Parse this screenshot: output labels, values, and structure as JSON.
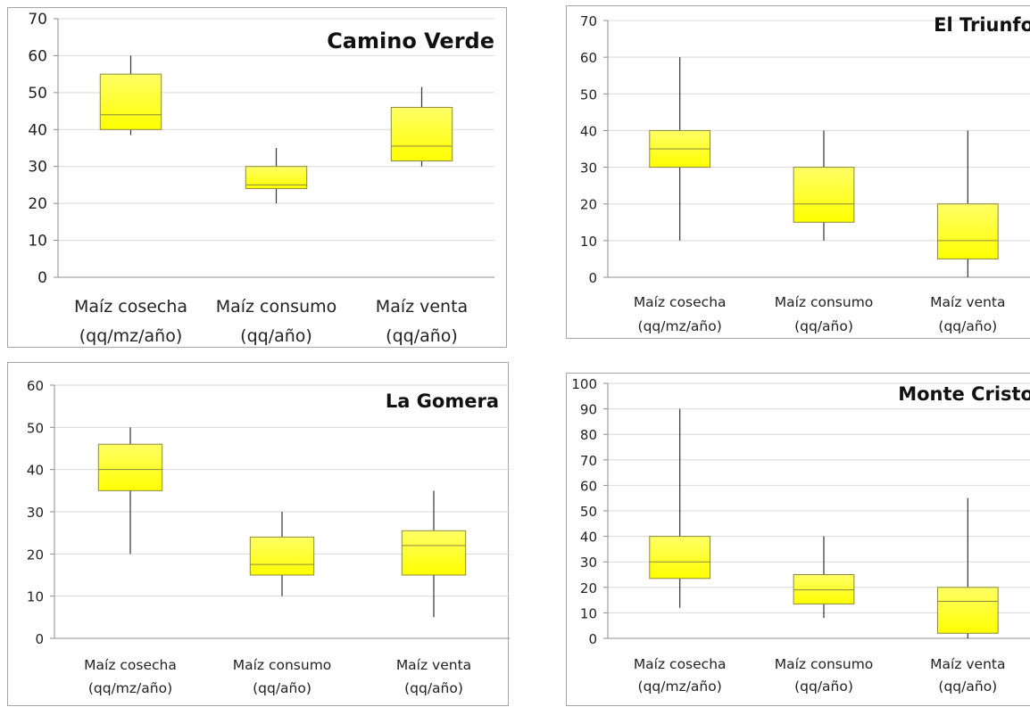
{
  "colors": {
    "box_top": "#ffff66",
    "box_bottom": "#ffff00",
    "box_stroke": "#8a8a40",
    "whisker": "#333333",
    "grid": "#d9d9d9",
    "axis": "#8c8c8c"
  },
  "chart_data": [
    {
      "type": "box",
      "title": "Camino Verde",
      "xlabel": "",
      "ylabel": "",
      "ylim": [
        0,
        70
      ],
      "yticks": [
        0,
        10,
        20,
        30,
        40,
        50,
        60,
        70
      ],
      "grid": true,
      "categories": [
        {
          "line1": "Maíz cosecha",
          "line2": "(qq/mz/año)"
        },
        {
          "line1": "Maíz consumo",
          "line2": "(qq/año)"
        },
        {
          "line1": "Maíz venta",
          "line2": "(qq/año)"
        }
      ],
      "boxes": [
        {
          "min": 38.5,
          "q1": 40,
          "median": 44,
          "q3": 55,
          "max": 60
        },
        {
          "min": 20,
          "q1": 24,
          "median": 25,
          "q3": 30,
          "max": 35
        },
        {
          "min": 30,
          "q1": 31.5,
          "median": 35.5,
          "q3": 46,
          "max": 51.5
        }
      ]
    },
    {
      "type": "box",
      "title": "El Triunfo",
      "xlabel": "",
      "ylabel": "",
      "ylim": [
        0,
        70
      ],
      "yticks": [
        0,
        10,
        20,
        30,
        40,
        50,
        60,
        70
      ],
      "grid": true,
      "categories": [
        {
          "line1": "Maíz cosecha",
          "line2": "(qq/mz/año)"
        },
        {
          "line1": "Maíz consumo",
          "line2": "(qq/año)"
        },
        {
          "line1": "Maíz venta",
          "line2": "(qq/año)"
        }
      ],
      "boxes": [
        {
          "min": 10,
          "q1": 30,
          "median": 35,
          "q3": 40,
          "max": 60
        },
        {
          "min": 10,
          "q1": 15,
          "median": 20,
          "q3": 30,
          "max": 40
        },
        {
          "min": 0,
          "q1": 5,
          "median": 10,
          "q3": 20,
          "max": 40
        }
      ]
    },
    {
      "type": "box",
      "title": "La Gomera",
      "xlabel": "",
      "ylabel": "",
      "ylim": [
        0,
        60
      ],
      "yticks": [
        0,
        10,
        20,
        30,
        40,
        50,
        60
      ],
      "grid": true,
      "categories": [
        {
          "line1": "Maíz cosecha",
          "line2": "(qq/mz/año)"
        },
        {
          "line1": "Maíz consumo",
          "line2": "(qq/año)"
        },
        {
          "line1": "Maíz venta",
          "line2": "(qq/año)"
        }
      ],
      "boxes": [
        {
          "min": 20,
          "q1": 35,
          "median": 40,
          "q3": 46,
          "max": 50
        },
        {
          "min": 10,
          "q1": 15,
          "median": 17.5,
          "q3": 24,
          "max": 30
        },
        {
          "min": 5,
          "q1": 15,
          "median": 22,
          "q3": 25.5,
          "max": 35
        }
      ]
    },
    {
      "type": "box",
      "title": "Monte Cristo",
      "xlabel": "",
      "ylabel": "",
      "ylim": [
        0,
        100
      ],
      "yticks": [
        0,
        10,
        20,
        30,
        40,
        50,
        60,
        70,
        80,
        90,
        100
      ],
      "grid": true,
      "categories": [
        {
          "line1": "Maíz cosecha",
          "line2": "(qq/mz/año)"
        },
        {
          "line1": "Maíz consumo",
          "line2": "(qq/año)"
        },
        {
          "line1": "Maíz venta",
          "line2": "(qq/año)"
        }
      ],
      "boxes": [
        {
          "min": 12,
          "q1": 23.5,
          "median": 30,
          "q3": 40,
          "max": 90
        },
        {
          "min": 8,
          "q1": 13.5,
          "median": 19,
          "q3": 25,
          "max": 40
        },
        {
          "min": 0,
          "q1": 2,
          "median": 14.5,
          "q3": 20,
          "max": 55
        }
      ]
    }
  ]
}
